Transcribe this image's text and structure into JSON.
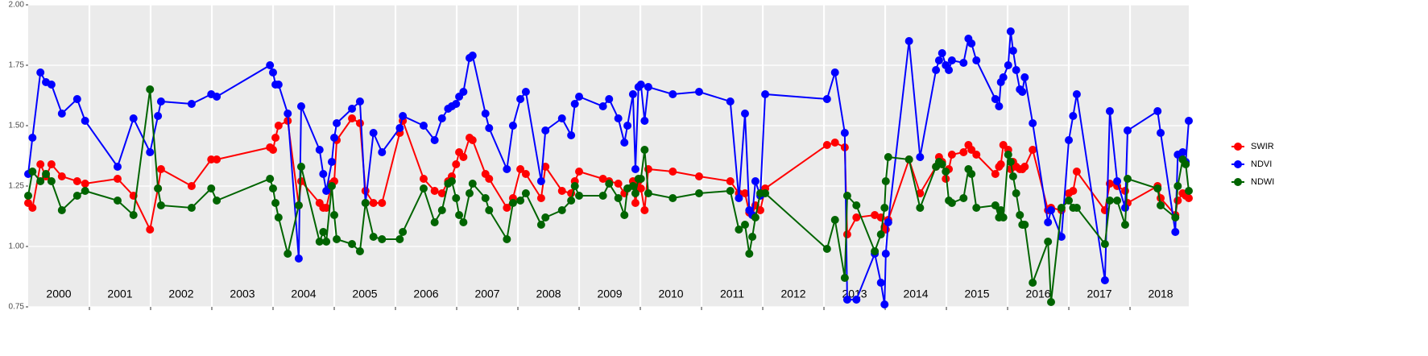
{
  "chart_data": {
    "type": "line",
    "x": [
      2000.0,
      2000.07,
      2000.2,
      2000.29,
      2000.38,
      2000.55,
      2000.8,
      2000.93,
      2001.46,
      2001.72,
      2001.99,
      2002.12,
      2002.17,
      2002.67,
      2002.99,
      2003.08,
      2003.95,
      2004.0,
      2004.04,
      2004.09,
      2004.24,
      2004.42,
      2004.46,
      2004.76,
      2004.82,
      2004.87,
      2004.96,
      2005.0,
      2005.04,
      2005.29,
      2005.42,
      2005.51,
      2005.64,
      2005.78,
      2006.07,
      2006.12,
      2006.46,
      2006.64,
      2006.76,
      2006.86,
      2006.92,
      2006.99,
      2007.04,
      2007.11,
      2007.21,
      2007.26,
      2007.47,
      2007.53,
      2007.82,
      2007.92,
      2008.04,
      2008.13,
      2008.38,
      2008.45,
      2008.72,
      2008.87,
      2008.93,
      2009.0,
      2009.39,
      2009.49,
      2009.64,
      2009.74,
      2009.79,
      2009.88,
      2009.92,
      2009.97,
      2010.01,
      2010.07,
      2010.13,
      2010.53,
      2010.96,
      2011.47,
      2011.61,
      2011.71,
      2011.78,
      2011.83,
      2011.88,
      2011.96,
      2012.04,
      2013.05,
      2013.18,
      2013.34,
      2013.38,
      2013.53,
      2013.83,
      2013.93,
      2013.99,
      2014.01,
      2014.05,
      2014.39,
      2014.57,
      2014.83,
      2014.88,
      2014.93,
      2014.99,
      2015.04,
      2015.09,
      2015.28,
      2015.36,
      2015.41,
      2015.49,
      2015.8,
      2015.86,
      2015.89,
      2015.93,
      2016.01,
      2016.05,
      2016.09,
      2016.14,
      2016.2,
      2016.24,
      2016.28,
      2016.41,
      2016.66,
      2016.71,
      2016.88,
      2017.0,
      2017.07,
      2017.13,
      2017.59,
      2017.67,
      2017.79,
      2017.92,
      2017.96,
      2018.45,
      2018.5,
      2018.74,
      2018.78,
      2018.86,
      2018.91,
      2018.96
    ],
    "series": [
      {
        "name": "SWIR",
        "color": "#ff0000",
        "values": [
          1.18,
          1.16,
          1.34,
          1.29,
          1.34,
          1.29,
          1.27,
          1.26,
          1.28,
          1.21,
          1.07,
          1.24,
          1.32,
          1.25,
          1.36,
          1.36,
          1.41,
          1.4,
          1.45,
          1.5,
          1.52,
          1.17,
          1.27,
          1.18,
          1.16,
          1.16,
          1.26,
          1.27,
          1.44,
          1.53,
          1.51,
          1.23,
          1.18,
          1.18,
          1.47,
          1.52,
          1.28,
          1.23,
          1.22,
          1.27,
          1.29,
          1.34,
          1.39,
          1.37,
          1.45,
          1.44,
          1.3,
          1.28,
          1.16,
          1.2,
          1.32,
          1.3,
          1.2,
          1.33,
          1.23,
          1.22,
          1.27,
          1.31,
          1.28,
          1.27,
          1.26,
          1.22,
          1.24,
          1.27,
          1.18,
          1.27,
          1.24,
          1.15,
          1.32,
          1.31,
          1.29,
          1.27,
          1.22,
          1.22,
          1.14,
          1.13,
          1.17,
          1.15,
          1.24,
          1.42,
          1.43,
          1.41,
          1.05,
          1.12,
          1.13,
          1.12,
          1.08,
          1.07,
          1.11,
          1.36,
          1.22,
          1.33,
          1.37,
          1.35,
          1.28,
          1.32,
          1.38,
          1.39,
          1.42,
          1.4,
          1.38,
          1.3,
          1.33,
          1.34,
          1.42,
          1.4,
          1.32,
          1.35,
          1.33,
          1.32,
          1.32,
          1.33,
          1.4,
          1.15,
          1.16,
          1.15,
          1.22,
          1.23,
          1.31,
          1.15,
          1.26,
          1.25,
          1.23,
          1.18,
          1.25,
          1.2,
          1.13,
          1.19,
          1.22,
          1.21,
          1.2
        ]
      },
      {
        "name": "NDVI",
        "color": "#0000ff",
        "values": [
          1.3,
          1.45,
          1.72,
          1.68,
          1.67,
          1.55,
          1.61,
          1.52,
          1.33,
          1.53,
          1.39,
          1.54,
          1.6,
          1.59,
          1.63,
          1.62,
          1.75,
          1.72,
          1.67,
          1.67,
          1.55,
          0.95,
          1.58,
          1.4,
          1.3,
          1.23,
          1.35,
          1.45,
          1.51,
          1.57,
          1.6,
          1.18,
          1.47,
          1.39,
          1.49,
          1.54,
          1.5,
          1.44,
          1.53,
          1.57,
          1.58,
          1.59,
          1.62,
          1.64,
          1.78,
          1.79,
          1.55,
          1.49,
          1.32,
          1.5,
          1.61,
          1.64,
          1.27,
          1.48,
          1.53,
          1.46,
          1.59,
          1.62,
          1.58,
          1.61,
          1.53,
          1.43,
          1.5,
          1.63,
          1.32,
          1.66,
          1.67,
          1.52,
          1.66,
          1.63,
          1.64,
          1.6,
          1.2,
          1.55,
          1.15,
          1.13,
          1.27,
          1.21,
          1.63,
          1.61,
          1.72,
          1.47,
          0.78,
          0.78,
          0.97,
          0.85,
          0.76,
          0.97,
          1.1,
          1.85,
          1.37,
          1.73,
          1.77,
          1.8,
          1.75,
          1.73,
          1.77,
          1.76,
          1.86,
          1.84,
          1.77,
          1.61,
          1.58,
          1.68,
          1.7,
          1.75,
          1.89,
          1.81,
          1.73,
          1.65,
          1.64,
          1.7,
          1.51,
          1.1,
          1.15,
          1.04,
          1.44,
          1.54,
          1.63,
          0.86,
          1.56,
          1.27,
          1.16,
          1.48,
          1.56,
          1.47,
          1.06,
          1.38,
          1.39,
          1.35,
          1.52
        ]
      },
      {
        "name": "NDWI",
        "color": "#006400",
        "values": [
          1.21,
          1.31,
          1.27,
          1.3,
          1.27,
          1.15,
          1.21,
          1.23,
          1.19,
          1.13,
          1.65,
          1.24,
          1.17,
          1.16,
          1.24,
          1.19,
          1.28,
          1.24,
          1.18,
          1.12,
          0.97,
          1.17,
          1.33,
          1.02,
          1.06,
          1.02,
          1.25,
          1.13,
          1.03,
          1.01,
          0.98,
          1.18,
          1.04,
          1.03,
          1.03,
          1.06,
          1.24,
          1.1,
          1.15,
          1.26,
          1.27,
          1.2,
          1.13,
          1.1,
          1.22,
          1.26,
          1.2,
          1.15,
          1.03,
          1.18,
          1.19,
          1.22,
          1.09,
          1.12,
          1.15,
          1.19,
          1.25,
          1.21,
          1.21,
          1.26,
          1.2,
          1.13,
          1.24,
          1.25,
          1.22,
          1.28,
          1.28,
          1.4,
          1.22,
          1.2,
          1.22,
          1.23,
          1.07,
          1.09,
          0.97,
          1.04,
          1.12,
          1.22,
          1.22,
          0.99,
          1.11,
          0.87,
          1.21,
          1.17,
          0.98,
          1.05,
          1.16,
          1.27,
          1.37,
          1.36,
          1.16,
          1.33,
          1.35,
          1.34,
          1.31,
          1.19,
          1.18,
          1.2,
          1.32,
          1.3,
          1.16,
          1.17,
          1.12,
          1.15,
          1.12,
          1.38,
          1.35,
          1.29,
          1.22,
          1.13,
          1.09,
          1.09,
          0.85,
          1.02,
          0.77,
          1.16,
          1.19,
          1.16,
          1.16,
          1.01,
          1.19,
          1.19,
          1.09,
          1.28,
          1.24,
          1.17,
          1.12,
          1.25,
          1.36,
          1.34,
          1.23
        ]
      }
    ],
    "xlim": [
      2000,
      2018.96
    ],
    "xticks": [
      2001,
      2002,
      2003,
      2004,
      2005,
      2006,
      2007,
      2008,
      2009,
      2010,
      2011,
      2012,
      2013,
      2014,
      2015,
      2016,
      2017,
      2018
    ],
    "year_labels": [
      2000,
      2001,
      2002,
      2003,
      2004,
      2005,
      2006,
      2007,
      2008,
      2009,
      2010,
      2011,
      2012,
      2013,
      2014,
      2015,
      2016,
      2017,
      2018
    ],
    "ylim": [
      0.75,
      2.0
    ],
    "yticks": [
      {
        "value": 0.75,
        "label": "0.75"
      },
      {
        "value": 1.0,
        "label": "1.00"
      },
      {
        "value": 1.25,
        "label": "1.25"
      },
      {
        "value": 1.5,
        "label": "1.50"
      },
      {
        "value": 1.75,
        "label": "1.75"
      },
      {
        "value": 2.0,
        "label": "2.00"
      }
    ],
    "grid": true,
    "legend": "right"
  }
}
